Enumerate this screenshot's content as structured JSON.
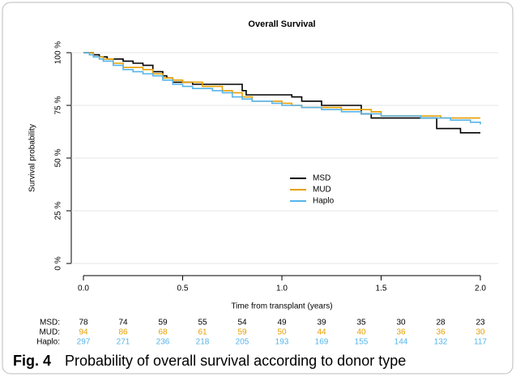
{
  "chart_data": {
    "type": "step",
    "title": "Overall Survival",
    "xlabel": "Time from transplant (years)",
    "ylabel": "Survival probability",
    "xlim": [
      0,
      2
    ],
    "ylim": [
      0,
      100
    ],
    "xticks": [
      {
        "value": 0,
        "label": "0.0"
      },
      0.5,
      {
        "value": 1,
        "label": "1.0"
      },
      1.5,
      {
        "value": 2,
        "label": "2.0"
      }
    ],
    "yticks": [
      {
        "value": 0,
        "label": "0 %"
      },
      {
        "value": 25,
        "label": "25 %"
      },
      {
        "value": 50,
        "label": "50 %"
      },
      {
        "value": 75,
        "label": "75 %"
      },
      {
        "value": 100,
        "label": "100 %"
      }
    ],
    "grid": true,
    "legend": "center",
    "series": [
      {
        "name": "MSD",
        "color": "#000000",
        "x": [
          0,
          0.05,
          0.08,
          0.12,
          0.2,
          0.25,
          0.3,
          0.35,
          0.4,
          0.42,
          0.45,
          0.55,
          0.8,
          0.82,
          1.05,
          1.1,
          1.2,
          1.4,
          1.45,
          1.78,
          1.9,
          2
        ],
        "values": [
          100,
          99,
          98,
          97,
          96,
          95,
          94,
          91,
          89,
          88,
          86,
          85,
          82,
          80,
          79,
          77,
          75,
          71,
          69,
          64,
          62,
          62
        ]
      },
      {
        "name": "MUD",
        "color": "#e69f00",
        "x": [
          0,
          0.05,
          0.1,
          0.15,
          0.2,
          0.3,
          0.35,
          0.4,
          0.45,
          0.5,
          0.6,
          0.7,
          0.75,
          0.8,
          0.85,
          1,
          1.05,
          1.1,
          1.3,
          1.45,
          1.5,
          1.8,
          2
        ],
        "values": [
          100,
          98,
          97,
          95,
          93,
          92,
          90,
          88,
          87,
          86,
          84,
          82,
          81,
          79,
          77,
          76,
          75,
          74,
          73,
          72,
          70,
          69,
          69
        ]
      },
      {
        "name": "Haplo",
        "color": "#56b4e9",
        "x": [
          0,
          0.03,
          0.05,
          0.08,
          0.1,
          0.15,
          0.2,
          0.25,
          0.3,
          0.35,
          0.4,
          0.45,
          0.5,
          0.55,
          0.65,
          0.7,
          0.75,
          0.8,
          0.85,
          0.95,
          1,
          1.1,
          1.2,
          1.3,
          1.4,
          1.5,
          1.7,
          1.85,
          1.95,
          2
        ],
        "values": [
          100,
          99,
          98,
          97,
          96,
          94,
          92,
          91,
          90,
          89,
          87,
          85,
          84,
          83,
          82,
          81,
          79,
          78,
          77,
          76,
          75,
          74,
          73,
          72,
          71,
          70,
          69,
          68,
          67,
          66
        ]
      }
    ],
    "risk_table": [
      {
        "label": "MSD:",
        "color": "#000000",
        "values": [
          78,
          74,
          59,
          55,
          54,
          49,
          39,
          35,
          30,
          28,
          23
        ]
      },
      {
        "label": "MUD:",
        "color": "#e69f00",
        "values": [
          94,
          86,
          68,
          61,
          59,
          50,
          44,
          40,
          36,
          36,
          30
        ]
      },
      {
        "label": "Haplo:",
        "color": "#56b4e9",
        "values": [
          297,
          271,
          236,
          218,
          205,
          193,
          169,
          155,
          144,
          132,
          117
        ]
      }
    ]
  },
  "caption": {
    "label": "Fig. 4",
    "text": "Probability of overall survival according to donor type"
  }
}
